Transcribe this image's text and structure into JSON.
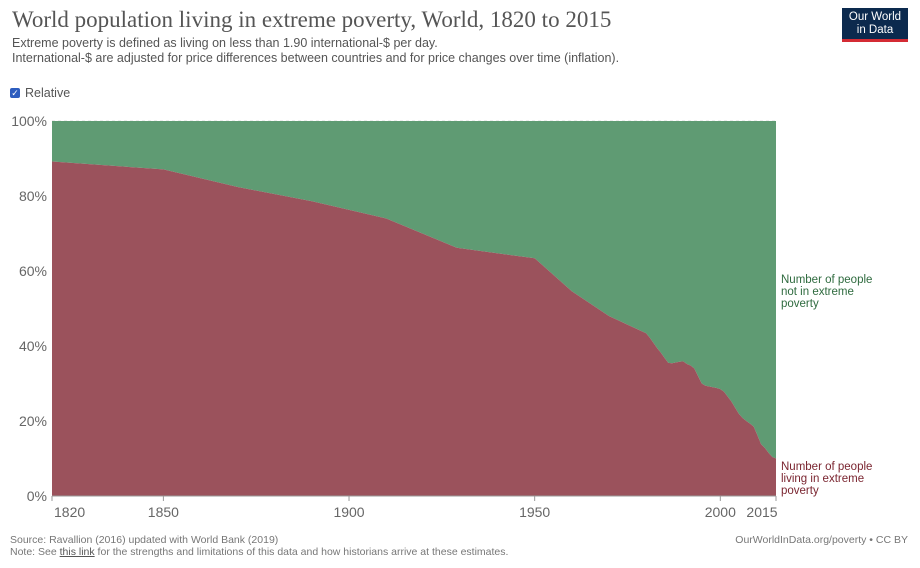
{
  "header": {
    "title": "World population living in extreme poverty, World, 1820 to 2015",
    "subtitle_line1": "Extreme poverty is defined as living on less than 1.90 international-$ per day.",
    "subtitle_line2": "International-$ are adjusted for price differences between countries and for price changes over time (inflation).",
    "logo_line1": "Our World",
    "logo_line2": "in Data"
  },
  "controls": {
    "relative_label": "Relative",
    "relative_checked": true
  },
  "footer": {
    "source": "Source: Ravallion (2016) updated with World Bank (2019)",
    "note_prefix": "Note: See ",
    "note_link": "this link",
    "note_suffix": " for the strengths and limitations of this data and how historians arrive at these estimates.",
    "right": "OurWorldInData.org/poverty • CC BY"
  },
  "colors": {
    "poverty": "#9b525c",
    "not_poverty": "#5f9b73",
    "poverty_label": "#7a2530",
    "not_poverty_label": "#2f6b3f"
  },
  "chart_data": {
    "type": "area",
    "stacked": true,
    "relative": true,
    "xlim": [
      1820,
      2015
    ],
    "ylim": [
      0,
      100
    ],
    "x_ticks": [
      1820,
      1850,
      1900,
      1950,
      2000,
      2015
    ],
    "y_ticks": [
      "0%",
      "20%",
      "40%",
      "60%",
      "80%",
      "100%"
    ],
    "grid": "horizontal",
    "legend_placement": "right",
    "x": [
      1820,
      1850,
      1870,
      1890,
      1910,
      1929,
      1950,
      1960,
      1970,
      1980,
      1981,
      1982,
      1983,
      1984,
      1985,
      1986,
      1987,
      1988,
      1989,
      1990,
      1991,
      1992,
      1993,
      1994,
      1995,
      1996,
      1997,
      1998,
      1999,
      2000,
      2001,
      2002,
      2003,
      2004,
      2005,
      2006,
      2007,
      2008,
      2009,
      2010,
      2011,
      2012,
      2013,
      2014,
      2015
    ],
    "series": [
      {
        "name": "Number of people living in extreme poverty",
        "values": [
          89.2,
          87.1,
          82.4,
          78.6,
          74.0,
          66.2,
          63.4,
          54.6,
          48.0,
          43.4,
          42.2,
          40.8,
          39.4,
          38.2,
          36.8,
          35.5,
          35.4,
          35.6,
          35.8,
          35.9,
          35.2,
          34.8,
          34.0,
          32.0,
          30.0,
          29.4,
          29.2,
          29.0,
          28.8,
          28.5,
          27.8,
          26.5,
          25.2,
          23.5,
          21.9,
          20.8,
          20.0,
          19.3,
          18.5,
          16.2,
          13.8,
          12.8,
          11.5,
          10.4,
          10.0
        ]
      },
      {
        "name": "Number of people not in extreme poverty",
        "values": [
          10.8,
          12.9,
          17.6,
          21.4,
          26.0,
          33.8,
          36.6,
          45.4,
          52.0,
          56.6,
          57.8,
          59.2,
          60.6,
          61.8,
          63.2,
          64.5,
          64.6,
          64.4,
          64.2,
          64.1,
          64.8,
          65.2,
          66.0,
          68.0,
          70.0,
          70.6,
          70.8,
          71.0,
          71.2,
          71.5,
          72.2,
          73.5,
          74.8,
          76.5,
          78.1,
          79.2,
          80.0,
          80.7,
          81.5,
          83.8,
          86.2,
          87.2,
          88.5,
          89.6,
          90.0
        ]
      }
    ]
  }
}
